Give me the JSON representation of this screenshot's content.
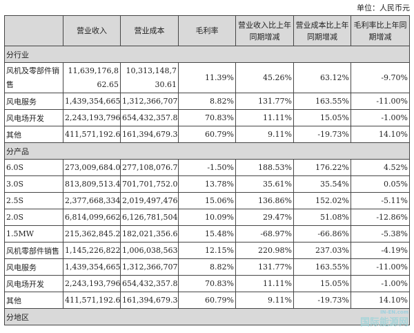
{
  "unit": "单位：人民币元",
  "headers": [
    "",
    "营业收入",
    "营业成本",
    "毛利率",
    "营业收入比上年同期增减",
    "营业成本比上年同期增减",
    "毛利率比上年同期增减"
  ],
  "sections": [
    {
      "title": "分行业",
      "rows": [
        [
          "风机及零部件销售",
          "11,639,176,862.65",
          "10,313,148,730.61",
          "11.39%",
          "45.26%",
          "63.12%",
          "-9.70%"
        ],
        [
          "风电服务",
          "1,439,354,665.85",
          "1,312,366,707.66",
          "8.82%",
          "131.77%",
          "163.55%",
          "-11.00%"
        ],
        [
          "风电场开发",
          "2,243,193,796.64",
          "654,432,357.87",
          "70.83%",
          "11.11%",
          "15.05%",
          "-1.00%"
        ],
        [
          "其他",
          "411,571,192.65",
          "161,394,679.34",
          "60.79%",
          "9.11%",
          "-19.73%",
          "14.10%"
        ]
      ]
    },
    {
      "title": "分产品",
      "rows": [
        [
          "6.0S",
          "273,009,684.08",
          "277,108,076.75",
          "-1.50%",
          "188.53%",
          "176.22%",
          "4.52%"
        ],
        [
          "3.0S",
          "813,809,513.49",
          "701,701,752.00",
          "13.78%",
          "35.61%",
          "35.54%",
          "0.05%"
        ],
        [
          "2.5S",
          "2,377,668,334.24",
          "2,019,497,476.91",
          "15.06%",
          "136.86%",
          "152.02%",
          "-5.11%"
        ],
        [
          "2.0S",
          "6,814,099,662.81",
          "6,126,781,504.39",
          "10.09%",
          "29.47%",
          "51.08%",
          "-12.86%"
        ],
        [
          "1.5MW",
          "215,362,845.20",
          "182,021,356.63",
          "15.48%",
          "-68.97%",
          "-66.86%",
          "-5.38%"
        ],
        [
          "风机零部件销售",
          "1,145,226,822.83",
          "1,006,038,563.93",
          "12.15%",
          "220.98%",
          "237.03%",
          "-4.19%"
        ],
        [
          "风电服务",
          "1,439,354,665.85",
          "1,312,366,707.66",
          "8.82%",
          "131.77%",
          "163.55%",
          "-11.00%"
        ],
        [
          "风电场开发",
          "2,243,193,796.64",
          "654,432,357.87",
          "70.83%",
          "11.11%",
          "15.05%",
          "-1.00%"
        ],
        [
          "其他",
          "411,571,192.65",
          "161,394,679.34",
          "60.79%",
          "9.11%",
          "-19.73%",
          "14.10%"
        ]
      ]
    },
    {
      "title": "分地区",
      "rows": []
    }
  ],
  "watermark": {
    "top": "IN-EN.com",
    "bottom": "国际能源网"
  }
}
